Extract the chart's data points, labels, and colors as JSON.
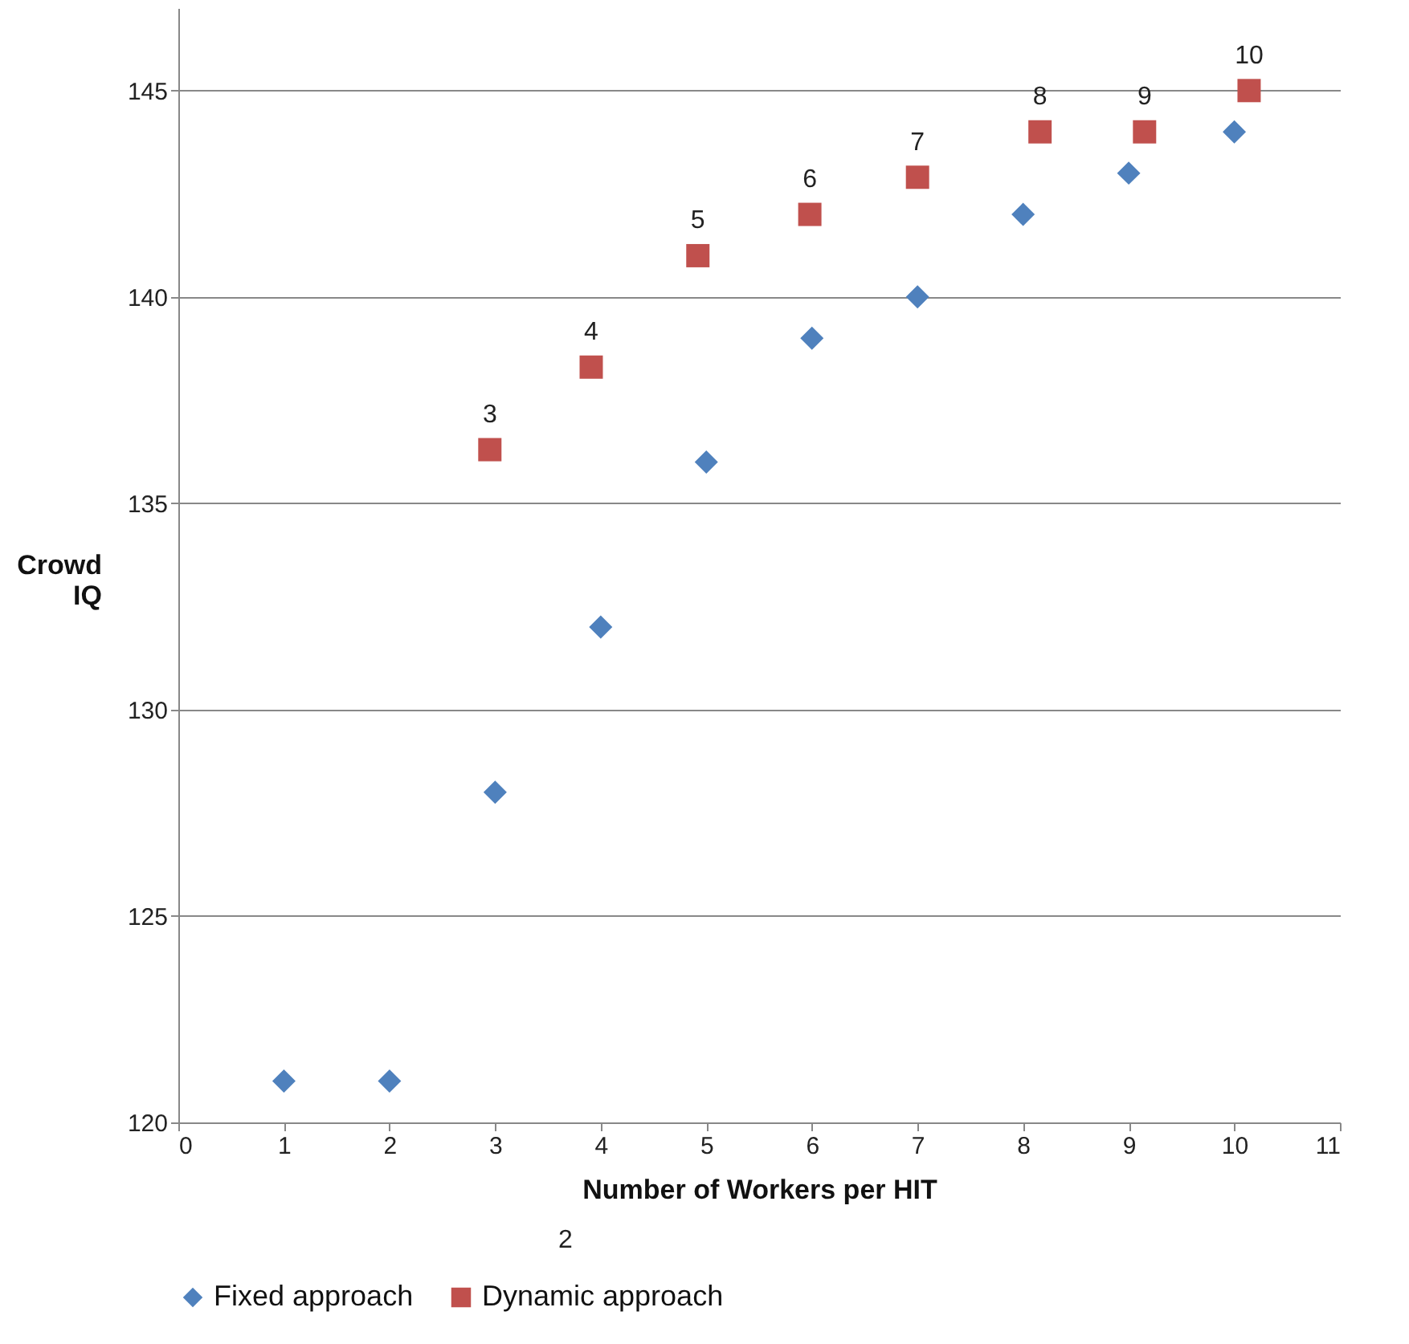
{
  "chart_data": {
    "type": "scatter",
    "xlabel": "Number of Workers per HIT",
    "ylabel": "Crowd IQ",
    "xlim": [
      0,
      11
    ],
    "xticks": [
      0,
      1,
      2,
      3,
      4,
      5,
      6,
      7,
      8,
      9,
      10,
      11
    ],
    "ylim": [
      120,
      147
    ],
    "yticks": [
      120,
      125,
      130,
      135,
      140,
      145
    ],
    "grid": "y",
    "legend": "bottom",
    "annotations": [
      "2",
      {
        "text": "3",
        "x": 2.95,
        "y": 136.3
      },
      {
        "text": "4",
        "x": 3.91,
        "y": 138.3
      },
      {
        "text": "5",
        "x": 4.92,
        "y": 141.0
      },
      {
        "text": "6",
        "x": 5.98,
        "y": 142.0
      },
      {
        "text": "7",
        "x": 7.0,
        "y": 142.9
      },
      {
        "text": "8",
        "x": 8.16,
        "y": 144.0
      },
      {
        "text": "9",
        "x": 9.15,
        "y": 144.0
      },
      {
        "text": "10",
        "x": 10.14,
        "y": 145.0
      }
    ],
    "series": [
      {
        "name": "Fixed approach",
        "color": "#4f81bd",
        "marker": "diamond",
        "x": [
          1,
          2,
          3,
          4,
          5,
          6,
          7,
          8,
          9,
          10
        ],
        "values": [
          121,
          121,
          128,
          132,
          136,
          139,
          140,
          142,
          143,
          144
        ]
      },
      {
        "name": "Dynamic approach",
        "color": "#c0504d",
        "marker": "square",
        "x": [
          2.95,
          3.91,
          4.92,
          5.98,
          7.0,
          8.16,
          9.15,
          10.14
        ],
        "values": [
          136.3,
          138.3,
          141.0,
          142.0,
          142.9,
          144.0,
          144.0,
          145.0
        ]
      }
    ]
  }
}
